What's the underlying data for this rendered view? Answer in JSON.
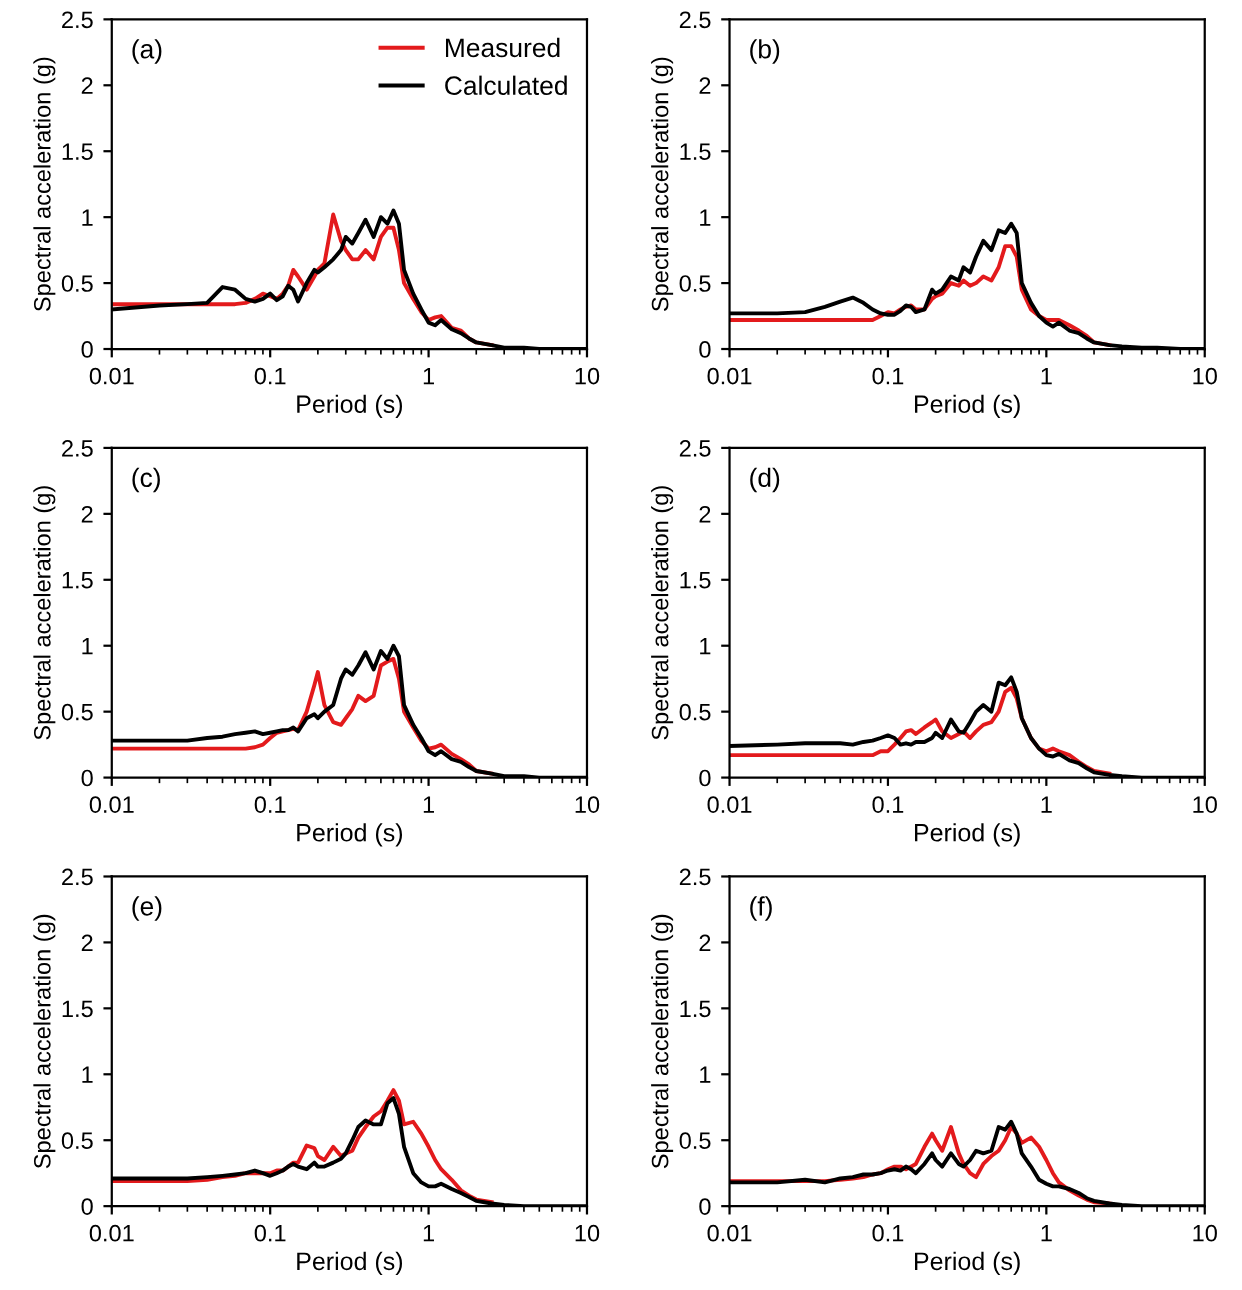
{
  "chart_data": [
    {
      "type": "line",
      "annotations": [
        "(a)"
      ],
      "xlabel": "Period (s)",
      "ylabel": "Spectral acceleration (g)",
      "log": "x",
      "xlim": [
        0.01,
        10
      ],
      "xticks": [
        0.01,
        0.1,
        1,
        10
      ],
      "ylim": [
        0,
        2.5
      ],
      "yticks": [
        0,
        0.5,
        1,
        1.5,
        2,
        2.5
      ],
      "legend": "top right",
      "x": [
        0.01,
        0.02,
        0.03,
        0.04,
        0.05,
        0.06,
        0.07,
        0.08,
        0.09,
        0.1,
        0.11,
        0.12,
        0.13,
        0.14,
        0.15,
        0.17,
        0.19,
        0.2,
        0.22,
        0.25,
        0.28,
        0.3,
        0.33,
        0.36,
        0.4,
        0.45,
        0.5,
        0.55,
        0.6,
        0.65,
        0.7,
        0.8,
        0.9,
        1,
        1.1,
        1.2,
        1.4,
        1.6,
        1.8,
        2,
        2.5,
        3,
        4,
        5,
        7,
        10
      ],
      "series": [
        {
          "name": "Measured",
          "color": "#e31a1c",
          "x": [
            0.01,
            0.02,
            0.03,
            0.04,
            0.05,
            0.06,
            0.07,
            0.08,
            0.09,
            0.1,
            0.11,
            0.12,
            0.13,
            0.14,
            0.15,
            0.17,
            0.19,
            0.2,
            0.22,
            0.25,
            0.28,
            0.3,
            0.33,
            0.36,
            0.4,
            0.45,
            0.5,
            0.55,
            0.6,
            0.65,
            0.7,
            0.8,
            0.9,
            1,
            1.1,
            1.2,
            1.4,
            1.6,
            1.8,
            2,
            2.5
          ],
          "values": [
            0.34,
            0.34,
            0.34,
            0.34,
            0.34,
            0.34,
            0.35,
            0.38,
            0.42,
            0.4,
            0.38,
            0.42,
            0.48,
            0.6,
            0.55,
            0.45,
            0.55,
            0.6,
            0.65,
            1.02,
            0.82,
            0.75,
            0.68,
            0.68,
            0.75,
            0.68,
            0.85,
            0.92,
            0.92,
            0.75,
            0.5,
            0.38,
            0.28,
            0.22,
            0.24,
            0.25,
            0.16,
            0.14,
            0.08,
            0.05,
            0.03
          ]
        },
        {
          "name": "Calculated",
          "color": "#000000",
          "values": [
            0.3,
            0.33,
            0.34,
            0.35,
            0.47,
            0.45,
            0.38,
            0.36,
            0.38,
            0.42,
            0.37,
            0.4,
            0.48,
            0.45,
            0.36,
            0.5,
            0.6,
            0.58,
            0.62,
            0.68,
            0.75,
            0.85,
            0.8,
            0.88,
            0.98,
            0.85,
            1.0,
            0.95,
            1.05,
            0.95,
            0.6,
            0.42,
            0.3,
            0.2,
            0.18,
            0.22,
            0.15,
            0.12,
            0.08,
            0.05,
            0.03,
            0.01,
            0.01,
            0,
            0,
            0
          ]
        }
      ]
    },
    {
      "type": "line",
      "annotations": [
        "(b)"
      ],
      "xlabel": "Period (s)",
      "ylabel": "Spectral acceleration (g)",
      "log": "x",
      "xlim": [
        0.01,
        10
      ],
      "xticks": [
        0.01,
        0.1,
        1,
        10
      ],
      "ylim": [
        0,
        2.5
      ],
      "yticks": [
        0,
        0.5,
        1,
        1.5,
        2,
        2.5
      ],
      "x": [
        0.01,
        0.02,
        0.03,
        0.04,
        0.05,
        0.06,
        0.07,
        0.08,
        0.09,
        0.1,
        0.11,
        0.12,
        0.13,
        0.14,
        0.15,
        0.17,
        0.19,
        0.2,
        0.22,
        0.25,
        0.28,
        0.3,
        0.33,
        0.36,
        0.4,
        0.45,
        0.5,
        0.55,
        0.6,
        0.65,
        0.7,
        0.8,
        0.9,
        1,
        1.1,
        1.2,
        1.4,
        1.6,
        1.8,
        2,
        2.5,
        3,
        4,
        5,
        7,
        10
      ],
      "series": [
        {
          "color": "#e31a1c",
          "x": [
            0.01,
            0.02,
            0.03,
            0.04,
            0.05,
            0.06,
            0.07,
            0.08,
            0.09,
            0.1,
            0.11,
            0.12,
            0.13,
            0.14,
            0.15,
            0.17,
            0.19,
            0.2,
            0.22,
            0.25,
            0.28,
            0.3,
            0.33,
            0.36,
            0.4,
            0.45,
            0.5,
            0.55,
            0.6,
            0.65,
            0.7,
            0.8,
            0.9,
            1,
            1.1,
            1.2,
            1.4,
            1.6,
            1.8,
            2,
            2.5
          ],
          "values": [
            0.22,
            0.22,
            0.22,
            0.22,
            0.22,
            0.22,
            0.22,
            0.22,
            0.25,
            0.28,
            0.27,
            0.3,
            0.32,
            0.33,
            0.3,
            0.3,
            0.38,
            0.4,
            0.42,
            0.5,
            0.48,
            0.52,
            0.48,
            0.5,
            0.55,
            0.52,
            0.62,
            0.78,
            0.78,
            0.7,
            0.45,
            0.3,
            0.25,
            0.22,
            0.22,
            0.22,
            0.18,
            0.14,
            0.1,
            0.05,
            0.03
          ]
        },
        {
          "color": "#000000",
          "values": [
            0.27,
            0.27,
            0.28,
            0.32,
            0.36,
            0.39,
            0.35,
            0.3,
            0.27,
            0.26,
            0.26,
            0.29,
            0.33,
            0.32,
            0.28,
            0.3,
            0.45,
            0.42,
            0.45,
            0.55,
            0.52,
            0.62,
            0.58,
            0.7,
            0.82,
            0.75,
            0.9,
            0.88,
            0.95,
            0.88,
            0.5,
            0.35,
            0.25,
            0.2,
            0.17,
            0.2,
            0.14,
            0.12,
            0.08,
            0.05,
            0.03,
            0.02,
            0.01,
            0.01,
            0,
            0
          ]
        }
      ]
    },
    {
      "type": "line",
      "annotations": [
        "(c)"
      ],
      "xlabel": "Period (s)",
      "ylabel": "Spectral acceleration (g)",
      "log": "x",
      "xlim": [
        0.01,
        10
      ],
      "xticks": [
        0.01,
        0.1,
        1,
        10
      ],
      "ylim": [
        0,
        2.5
      ],
      "yticks": [
        0,
        0.5,
        1,
        1.5,
        2,
        2.5
      ],
      "x": [
        0.01,
        0.02,
        0.03,
        0.04,
        0.05,
        0.06,
        0.07,
        0.08,
        0.09,
        0.1,
        0.11,
        0.12,
        0.13,
        0.14,
        0.15,
        0.17,
        0.19,
        0.2,
        0.22,
        0.25,
        0.28,
        0.3,
        0.33,
        0.36,
        0.4,
        0.45,
        0.5,
        0.55,
        0.6,
        0.65,
        0.7,
        0.8,
        0.9,
        1,
        1.1,
        1.2,
        1.4,
        1.6,
        1.8,
        2,
        2.5,
        3,
        4,
        5,
        7,
        10
      ],
      "series": [
        {
          "color": "#e31a1c",
          "x": [
            0.01,
            0.02,
            0.03,
            0.04,
            0.05,
            0.06,
            0.07,
            0.08,
            0.09,
            0.1,
            0.11,
            0.12,
            0.13,
            0.14,
            0.15,
            0.17,
            0.19,
            0.2,
            0.22,
            0.25,
            0.28,
            0.3,
            0.33,
            0.36,
            0.4,
            0.45,
            0.5,
            0.55,
            0.6,
            0.65,
            0.7,
            0.8,
            0.9,
            1,
            1.1,
            1.2,
            1.4,
            1.6,
            1.8,
            2,
            2.5
          ],
          "values": [
            0.22,
            0.22,
            0.22,
            0.22,
            0.22,
            0.22,
            0.22,
            0.23,
            0.25,
            0.3,
            0.34,
            0.35,
            0.36,
            0.37,
            0.36,
            0.5,
            0.7,
            0.8,
            0.55,
            0.42,
            0.4,
            0.45,
            0.52,
            0.62,
            0.58,
            0.62,
            0.85,
            0.88,
            0.9,
            0.75,
            0.5,
            0.38,
            0.28,
            0.22,
            0.23,
            0.25,
            0.18,
            0.14,
            0.1,
            0.05,
            0.03
          ]
        },
        {
          "color": "#000000",
          "values": [
            0.28,
            0.28,
            0.28,
            0.3,
            0.31,
            0.33,
            0.34,
            0.35,
            0.33,
            0.34,
            0.35,
            0.36,
            0.36,
            0.38,
            0.35,
            0.45,
            0.48,
            0.45,
            0.5,
            0.55,
            0.75,
            0.82,
            0.78,
            0.85,
            0.95,
            0.82,
            0.96,
            0.9,
            1.0,
            0.92,
            0.55,
            0.4,
            0.3,
            0.2,
            0.17,
            0.2,
            0.14,
            0.12,
            0.08,
            0.05,
            0.03,
            0.01,
            0.01,
            0,
            0,
            0
          ]
        }
      ]
    },
    {
      "type": "line",
      "annotations": [
        "(d)"
      ],
      "xlabel": "Period (s)",
      "ylabel": "Spectral acceleration (g)",
      "log": "x",
      "xlim": [
        0.01,
        10
      ],
      "xticks": [
        0.01,
        0.1,
        1,
        10
      ],
      "ylim": [
        0,
        2.5
      ],
      "yticks": [
        0,
        0.5,
        1,
        1.5,
        2,
        2.5
      ],
      "x": [
        0.01,
        0.02,
        0.03,
        0.04,
        0.05,
        0.06,
        0.07,
        0.08,
        0.09,
        0.1,
        0.11,
        0.12,
        0.13,
        0.14,
        0.15,
        0.17,
        0.19,
        0.2,
        0.22,
        0.25,
        0.28,
        0.3,
        0.33,
        0.36,
        0.4,
        0.45,
        0.5,
        0.55,
        0.6,
        0.65,
        0.7,
        0.8,
        0.9,
        1,
        1.1,
        1.2,
        1.4,
        1.6,
        1.8,
        2,
        2.5,
        3,
        4,
        5,
        7,
        10
      ],
      "series": [
        {
          "color": "#e31a1c",
          "x": [
            0.01,
            0.02,
            0.03,
            0.04,
            0.05,
            0.06,
            0.07,
            0.08,
            0.09,
            0.1,
            0.11,
            0.12,
            0.13,
            0.14,
            0.15,
            0.17,
            0.19,
            0.2,
            0.22,
            0.25,
            0.28,
            0.3,
            0.33,
            0.36,
            0.4,
            0.45,
            0.5,
            0.55,
            0.6,
            0.65,
            0.7,
            0.8,
            0.9,
            1,
            1.1,
            1.2,
            1.4,
            1.6,
            1.8,
            2,
            2.5
          ],
          "values": [
            0.17,
            0.17,
            0.17,
            0.17,
            0.17,
            0.17,
            0.17,
            0.17,
            0.2,
            0.2,
            0.25,
            0.3,
            0.35,
            0.36,
            0.33,
            0.38,
            0.42,
            0.44,
            0.35,
            0.3,
            0.33,
            0.35,
            0.3,
            0.35,
            0.4,
            0.42,
            0.5,
            0.65,
            0.68,
            0.6,
            0.45,
            0.3,
            0.22,
            0.2,
            0.22,
            0.2,
            0.17,
            0.12,
            0.08,
            0.05,
            0.03
          ]
        },
        {
          "color": "#000000",
          "values": [
            0.24,
            0.25,
            0.26,
            0.26,
            0.26,
            0.25,
            0.27,
            0.28,
            0.3,
            0.32,
            0.3,
            0.25,
            0.26,
            0.25,
            0.27,
            0.27,
            0.3,
            0.34,
            0.3,
            0.44,
            0.35,
            0.34,
            0.42,
            0.5,
            0.55,
            0.5,
            0.72,
            0.7,
            0.76,
            0.65,
            0.45,
            0.3,
            0.22,
            0.17,
            0.16,
            0.18,
            0.13,
            0.11,
            0.07,
            0.04,
            0.02,
            0.01,
            0,
            0,
            0,
            0
          ]
        }
      ]
    },
    {
      "type": "line",
      "annotations": [
        "(e)"
      ],
      "xlabel": "Period (s)",
      "ylabel": "Spectral acceleration (g)",
      "log": "x",
      "xlim": [
        0.01,
        10
      ],
      "xticks": [
        0.01,
        0.1,
        1,
        10
      ],
      "ylim": [
        0,
        2.5
      ],
      "yticks": [
        0,
        0.5,
        1,
        1.5,
        2,
        2.5
      ],
      "x": [
        0.01,
        0.02,
        0.03,
        0.04,
        0.05,
        0.06,
        0.07,
        0.08,
        0.09,
        0.1,
        0.11,
        0.12,
        0.13,
        0.14,
        0.15,
        0.17,
        0.19,
        0.2,
        0.22,
        0.25,
        0.28,
        0.3,
        0.33,
        0.36,
        0.4,
        0.45,
        0.5,
        0.55,
        0.6,
        0.65,
        0.7,
        0.8,
        0.9,
        1,
        1.1,
        1.2,
        1.4,
        1.6,
        1.8,
        2,
        2.5,
        3,
        4,
        5,
        7,
        10
      ],
      "series": [
        {
          "color": "#e31a1c",
          "x": [
            0.01,
            0.02,
            0.03,
            0.04,
            0.05,
            0.06,
            0.07,
            0.08,
            0.09,
            0.1,
            0.11,
            0.12,
            0.13,
            0.14,
            0.15,
            0.17,
            0.19,
            0.2,
            0.22,
            0.25,
            0.28,
            0.3,
            0.33,
            0.36,
            0.4,
            0.45,
            0.5,
            0.55,
            0.6,
            0.65,
            0.7,
            0.8,
            0.9,
            1,
            1.1,
            1.2,
            1.4,
            1.6,
            1.8,
            2,
            2.5
          ],
          "values": [
            0.19,
            0.19,
            0.19,
            0.2,
            0.22,
            0.23,
            0.25,
            0.25,
            0.25,
            0.25,
            0.27,
            0.27,
            0.3,
            0.33,
            0.33,
            0.46,
            0.44,
            0.38,
            0.35,
            0.45,
            0.38,
            0.4,
            0.42,
            0.52,
            0.6,
            0.68,
            0.72,
            0.8,
            0.88,
            0.8,
            0.62,
            0.64,
            0.55,
            0.45,
            0.35,
            0.28,
            0.2,
            0.12,
            0.08,
            0.05,
            0.03
          ]
        },
        {
          "color": "#000000",
          "values": [
            0.21,
            0.21,
            0.21,
            0.22,
            0.23,
            0.24,
            0.25,
            0.27,
            0.25,
            0.23,
            0.25,
            0.27,
            0.3,
            0.32,
            0.3,
            0.28,
            0.33,
            0.3,
            0.3,
            0.33,
            0.36,
            0.4,
            0.5,
            0.6,
            0.65,
            0.62,
            0.62,
            0.78,
            0.82,
            0.7,
            0.45,
            0.25,
            0.18,
            0.15,
            0.15,
            0.17,
            0.13,
            0.1,
            0.07,
            0.04,
            0.02,
            0.01,
            0,
            0,
            0,
            0
          ]
        }
      ]
    },
    {
      "type": "line",
      "annotations": [
        "(f)"
      ],
      "xlabel": "Period (s)",
      "ylabel": "Spectral acceleration (g)",
      "log": "x",
      "xlim": [
        0.01,
        10
      ],
      "xticks": [
        0.01,
        0.1,
        1,
        10
      ],
      "ylim": [
        0,
        2.5
      ],
      "yticks": [
        0,
        0.5,
        1,
        1.5,
        2,
        2.5
      ],
      "x": [
        0.01,
        0.02,
        0.03,
        0.04,
        0.05,
        0.06,
        0.07,
        0.08,
        0.09,
        0.1,
        0.11,
        0.12,
        0.13,
        0.14,
        0.15,
        0.17,
        0.19,
        0.2,
        0.22,
        0.25,
        0.28,
        0.3,
        0.33,
        0.36,
        0.4,
        0.45,
        0.5,
        0.55,
        0.6,
        0.65,
        0.7,
        0.8,
        0.9,
        1,
        1.1,
        1.2,
        1.4,
        1.6,
        1.8,
        2,
        2.5,
        3,
        4,
        5,
        7,
        10
      ],
      "series": [
        {
          "color": "#e31a1c",
          "x": [
            0.01,
            0.02,
            0.03,
            0.04,
            0.05,
            0.06,
            0.07,
            0.08,
            0.09,
            0.1,
            0.11,
            0.12,
            0.13,
            0.14,
            0.15,
            0.17,
            0.19,
            0.2,
            0.22,
            0.25,
            0.28,
            0.3,
            0.33,
            0.36,
            0.4,
            0.45,
            0.5,
            0.55,
            0.6,
            0.65,
            0.7,
            0.8,
            0.9,
            1,
            1.1,
            1.2,
            1.4,
            1.6,
            1.8,
            2,
            2.5
          ],
          "values": [
            0.19,
            0.19,
            0.19,
            0.19,
            0.2,
            0.21,
            0.22,
            0.24,
            0.25,
            0.28,
            0.3,
            0.3,
            0.28,
            0.3,
            0.32,
            0.45,
            0.55,
            0.5,
            0.42,
            0.6,
            0.4,
            0.32,
            0.25,
            0.22,
            0.32,
            0.38,
            0.42,
            0.5,
            0.6,
            0.55,
            0.48,
            0.52,
            0.45,
            0.35,
            0.25,
            0.18,
            0.12,
            0.08,
            0.05,
            0.03,
            0.02
          ]
        },
        {
          "color": "#000000",
          "values": [
            0.18,
            0.18,
            0.2,
            0.18,
            0.21,
            0.22,
            0.24,
            0.24,
            0.25,
            0.27,
            0.28,
            0.27,
            0.3,
            0.28,
            0.25,
            0.32,
            0.4,
            0.35,
            0.3,
            0.4,
            0.32,
            0.3,
            0.35,
            0.42,
            0.4,
            0.42,
            0.6,
            0.58,
            0.64,
            0.55,
            0.4,
            0.3,
            0.2,
            0.17,
            0.15,
            0.15,
            0.13,
            0.1,
            0.06,
            0.04,
            0.02,
            0.01,
            0,
            0,
            0,
            0
          ]
        }
      ]
    }
  ]
}
